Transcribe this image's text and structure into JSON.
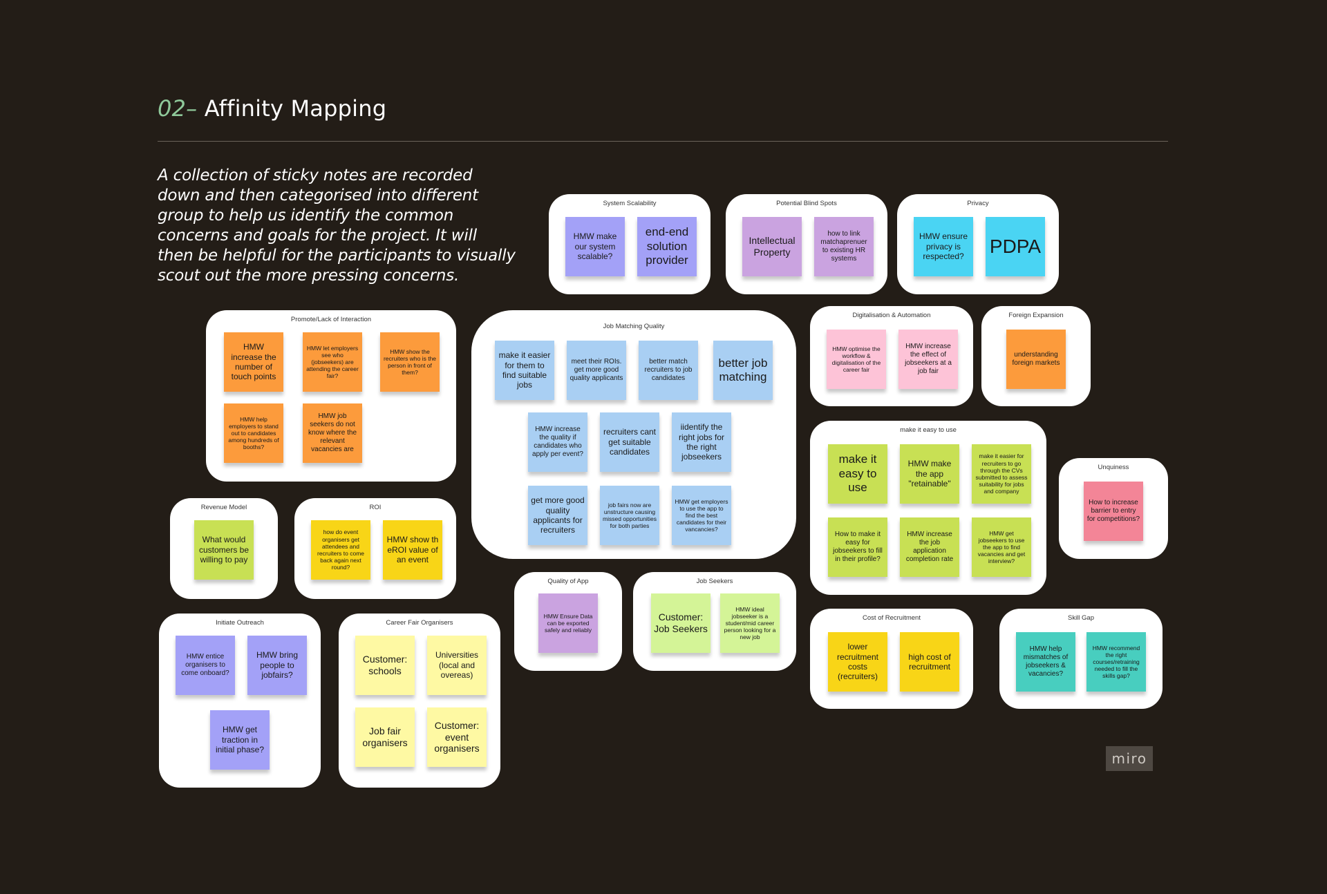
{
  "header": {
    "number": "02–",
    "title": "Affinity Mapping",
    "description": "A collection of sticky notes are recorded down and then categorised into different group to help us identify the common concerns and goals for the project. It will then be helpful for the participants to visually scout out the more pressing concerns."
  },
  "groups": {
    "system_scalability": {
      "label": "System Scalability",
      "notes": [
        "HMW make our system scalable?",
        "end-end solution provider"
      ]
    },
    "potential_blind_spots": {
      "label": "Potential Blind Spots",
      "notes": [
        "Intellectual Property",
        "how to link matchaprenuer to existing HR systems"
      ]
    },
    "privacy": {
      "label": "Privacy",
      "notes": [
        "HMW ensure privacy is respected?",
        "PDPA"
      ]
    },
    "promote": {
      "label": "Promote/Lack of Interaction",
      "notes": [
        "HMW increase the number of touch points",
        "HMW let employers see who (jobseekers) are attending the career fair?",
        "HMW show the recruiters who is the person in front of them?",
        "HMW help employers to stand out to candidates among hundreds of booths?",
        "HMW job seekers do not know where the relevant vacancies are"
      ]
    },
    "job_matching": {
      "label": "Job Matching Quality",
      "notes": [
        "make it easier for them to find suitable jobs",
        "meet their ROIs. get more good quality applicants",
        "better match recruiters to job candidates",
        "better job matching",
        "HMW increase the quality if candidates who apply per event?",
        "recruiters cant get suitable candidates",
        "iidentify the right jobs for the right jobseekers",
        "get more good quality applicants for recruiters",
        "job fairs now are unstructure causing missed opportunities for both parties",
        "HMW get employers to use the app to find the best candidates for their vancancies?"
      ]
    },
    "digitalisation": {
      "label": "Digitalisation & Automation",
      "notes": [
        "HMW optimise the workflow & digitalisation of the career fair",
        "HMW increase the effect of jobseekers at a job fair"
      ]
    },
    "foreign": {
      "label": "Foreign Expansion",
      "notes": [
        "understanding foreign markets"
      ]
    },
    "easy_use": {
      "label": "make it easy to use",
      "notes": [
        "make it easy to use",
        "HMW make the app \"retainable\"",
        "make it easier for recruiters to go through the CVs submitted to assess suitability for jobs and company",
        "How to make it easy for jobseekers to fill in their profile?",
        "HMW increase the job application completion rate",
        "HMW get jobseekers to use the app to find vacancies and get interview?"
      ]
    },
    "uniqueness": {
      "label": "Unquiness",
      "notes": [
        "How to increase barrier to entry for competitions?"
      ]
    },
    "revenue": {
      "label": "Revenue Model",
      "notes": [
        "What would customers be willing to pay"
      ]
    },
    "roi": {
      "label": "ROI",
      "notes": [
        "how do event organisers get attendees and recruiters to come back again next round?",
        "HMW show th eROI value of an event"
      ]
    },
    "quality_app": {
      "label": "Quality of App",
      "notes": [
        "HMW Ensure Data can be exported safely and reliably"
      ]
    },
    "job_seekers": {
      "label": "Job Seekers",
      "notes": [
        "Customer: Job Seekers",
        "HMW ideal jobseeker is a student/mid career person looking for a new job"
      ]
    },
    "cost": {
      "label": "Cost of Recruitment",
      "notes": [
        "lower recruitment costs (recruiters)",
        "high cost of recruitment"
      ]
    },
    "skill_gap": {
      "label": "Skill Gap",
      "notes": [
        "HMW help mismatches of jobseekers & vacancies?",
        "HMW recommend the right courses/retraining needed to fill the skills gap?"
      ]
    },
    "outreach": {
      "label": "Initiate Outreach",
      "notes": [
        "HMW entice organisers to come onboard?",
        "HMW bring people to jobfairs?",
        "HMW get traction in initial phase?"
      ]
    },
    "career_fair": {
      "label": "Career Fair Organisers",
      "notes": [
        "Customer: schools",
        "Universities (local and overeas)",
        "Job fair organisers",
        "Customer: event organisers"
      ]
    }
  },
  "brand": {
    "logo": "miro"
  }
}
